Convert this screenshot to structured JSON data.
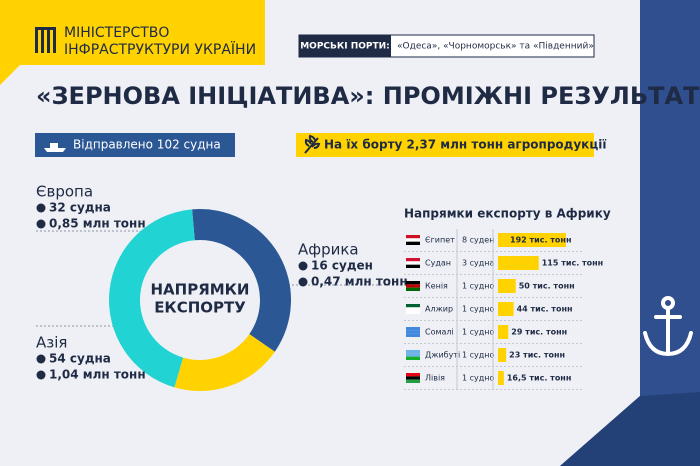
{
  "header": {
    "ministry_line1": "МІНІСТЕРСТВО",
    "ministry_line2": "ІНФРАСТРУКТУРИ УКРАЇНИ",
    "ports_label": "МОРСЬКІ ПОРТИ:",
    "ports": "«Одеса», «Чорноморськ» та «Південний»"
  },
  "title": "«ЗЕРНОВА ІНІЦІАТИВА»: ПРОМІЖНІ РЕЗУЛЬТАТИ",
  "summary": {
    "ships": "Відправлено 102 судна",
    "cargo": "На їх борту 2,37 млн тонн агропродукції"
  },
  "chart_data": [
    {
      "type": "donut",
      "center_label": [
        "НАПРЯМКИ",
        "ЕКСПОРТУ"
      ],
      "categories": [
        "Європа",
        "Африка",
        "Азія"
      ],
      "colors": [
        "#2c5795",
        "#ffd200",
        "#22d3d3"
      ],
      "ship_labels": [
        "32 судна",
        "16 суден",
        "54 судна"
      ],
      "values": [
        0.85,
        0.47,
        1.04
      ],
      "value_labels": [
        "0,85 млн тонн",
        "0,47 млн тонн",
        "1,04 млн тонн"
      ]
    },
    {
      "type": "bar",
      "title": "Напрямки експорту в Африку",
      "categories": [
        "Єгипет",
        "Судан",
        "Кенія",
        "Алжир",
        "Сомалі",
        "Джибуті",
        "Лівія"
      ],
      "ship_labels": [
        "8 суден",
        "3 судна",
        "1 судно",
        "1 судно",
        "1 судно",
        "1 судно",
        "1 судно"
      ],
      "values": [
        192,
        115,
        50,
        44,
        29,
        23,
        16.5
      ],
      "value_labels": [
        "192 тис. тонн",
        "115 тис. тонн",
        "50 тис. тонн",
        "44 тис. тонн",
        "29 тис. тонн",
        "23 тис. тонн",
        "16,5 тис. тонн"
      ],
      "color": "#ffd200"
    }
  ]
}
